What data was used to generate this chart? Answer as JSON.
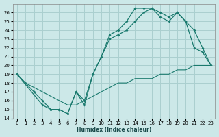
{
  "xlabel": "Humidex (Indice chaleur)",
  "bg_color": "#cce8e8",
  "grid_color": "#aacfcf",
  "line_color": "#1a7a6e",
  "xlim": [
    -0.5,
    23.5
  ],
  "ylim": [
    14,
    27
  ],
  "yticks": [
    14,
    15,
    16,
    17,
    18,
    19,
    20,
    21,
    22,
    23,
    24,
    25,
    26
  ],
  "xticks": [
    0,
    1,
    2,
    3,
    4,
    5,
    6,
    7,
    8,
    9,
    10,
    11,
    12,
    13,
    14,
    15,
    16,
    17,
    18,
    19,
    20,
    21,
    22,
    23
  ],
  "line1_x": [
    0,
    1,
    2,
    3,
    4,
    5,
    6,
    7,
    8,
    9,
    10,
    11,
    12,
    13,
    14,
    15,
    16,
    17,
    18,
    19,
    20,
    21,
    22,
    23
  ],
  "line1_y": [
    19,
    18,
    17,
    16,
    15,
    15,
    14.5,
    17,
    16,
    19,
    21,
    23.5,
    24,
    25,
    26.5,
    26.5,
    26.5,
    26,
    25.5,
    26,
    25,
    24,
    22,
    20
  ],
  "line2_x": [
    0,
    3,
    4,
    5,
    6,
    7,
    8,
    9,
    10,
    11,
    12,
    13,
    14,
    15,
    16,
    17,
    18,
    19,
    20,
    21,
    22,
    23
  ],
  "line2_y": [
    19,
    15.5,
    15,
    15,
    14.5,
    17,
    15.5,
    19,
    21,
    23,
    23.5,
    24,
    25,
    26,
    26.5,
    25.5,
    25,
    26,
    25,
    22,
    21.5,
    20
  ],
  "line3_x": [
    0,
    1,
    2,
    3,
    4,
    5,
    6,
    7,
    8,
    9,
    10,
    11,
    12,
    13,
    14,
    15,
    16,
    17,
    18,
    19,
    20,
    21,
    22,
    23
  ],
  "line3_y": [
    19,
    18,
    17.5,
    17,
    16.5,
    16,
    15.5,
    15.5,
    16,
    16.5,
    17,
    17.5,
    18,
    18,
    18.5,
    18.5,
    18.5,
    19,
    19,
    19.5,
    19.5,
    20,
    20,
    20
  ]
}
